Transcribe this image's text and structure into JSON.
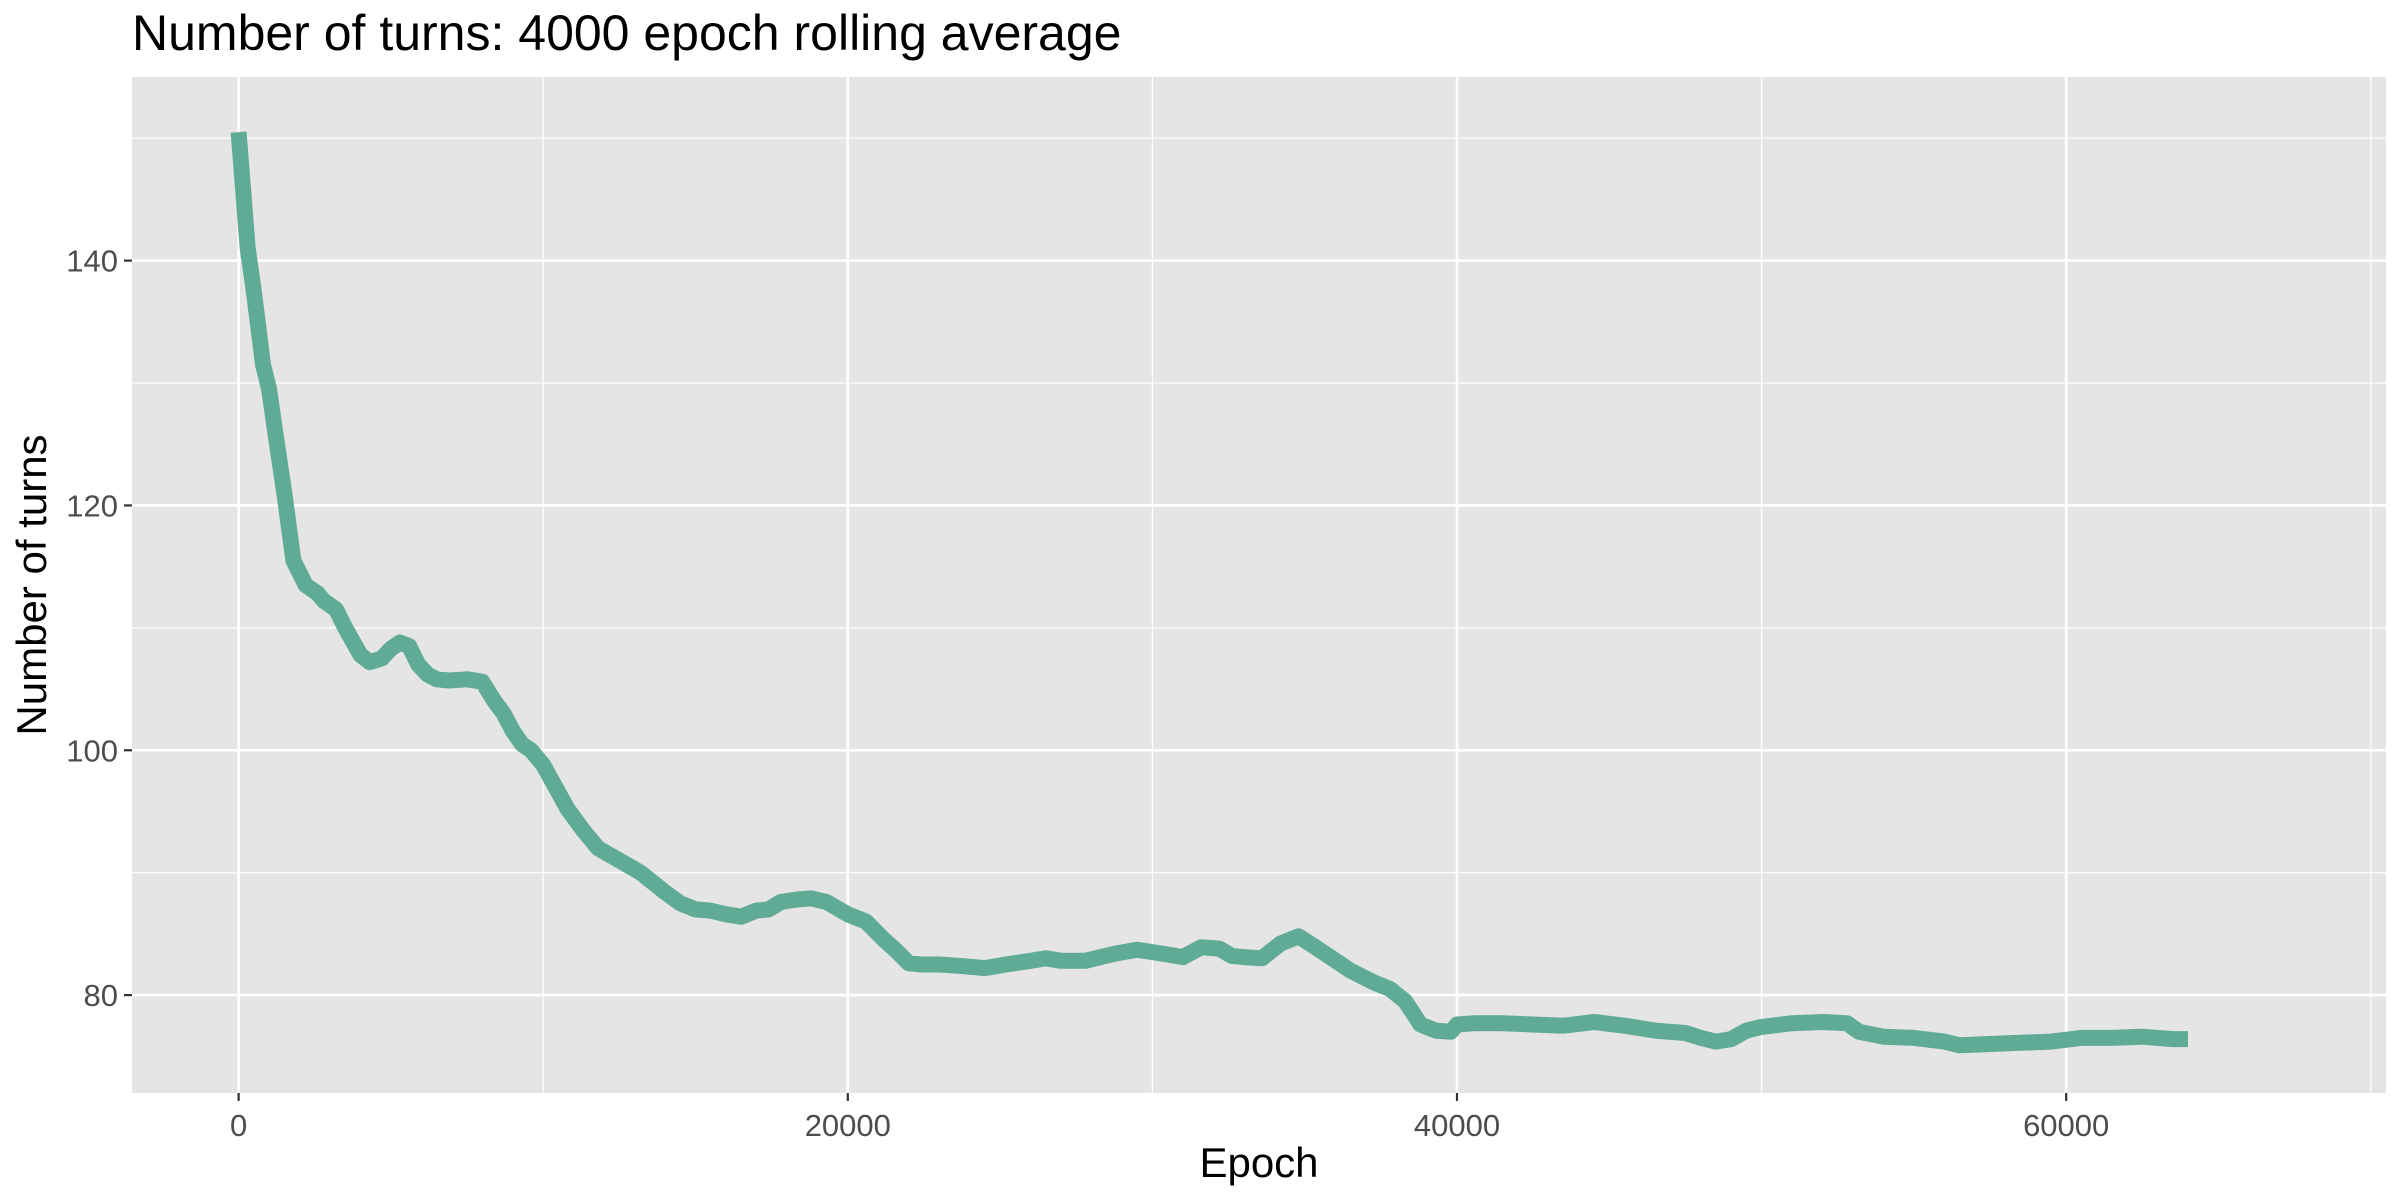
{
  "chart_data": {
    "type": "line",
    "title": "Number of turns: 4000 epoch rolling average",
    "xlabel": "Epoch",
    "ylabel": "Number of turns",
    "xlim": [
      -3500,
      70500
    ],
    "ylim": [
      72,
      155
    ],
    "x_ticks": [
      0,
      20000,
      40000,
      60000
    ],
    "x_tick_labels": [
      "0",
      "20000",
      "40000",
      "60000"
    ],
    "x_minor_ticks": [
      10000,
      30000,
      50000,
      70000
    ],
    "y_ticks": [
      80,
      100,
      120,
      140
    ],
    "y_tick_labels": [
      "80",
      "100",
      "120",
      "140"
    ],
    "y_minor_ticks": [
      90,
      110,
      130,
      150
    ],
    "grid": true,
    "background_color": "#e5e5e5",
    "grid_color": "#ffffff",
    "line_color": "#5fab95",
    "series": [
      {
        "x": [
          0,
          300,
          500,
          800,
          1000,
          1200,
          1500,
          1800,
          2200,
          2600,
          2800,
          3200,
          3500,
          4000,
          4300,
          4700,
          5000,
          5300,
          5600,
          5900,
          6200,
          6500,
          6900,
          7500,
          8000,
          8400,
          8700,
          9000,
          9300,
          9600,
          10000,
          10400,
          10800,
          11300,
          11800,
          12500,
          13200,
          14000,
          14500,
          15000,
          15500,
          16000,
          16500,
          17000,
          17400,
          17800,
          18300,
          18800,
          19300,
          20000,
          20600,
          21200,
          21600,
          22000,
          22400,
          23000,
          23600,
          24500,
          25200,
          26000,
          26500,
          27000,
          27800,
          28300,
          28800,
          29500,
          30300,
          31000,
          31600,
          32200,
          32600,
          33000,
          33600,
          34200,
          34800,
          35300,
          35900,
          36500,
          37300,
          37800,
          38300,
          38800,
          39300,
          39800,
          40000,
          40600,
          41500,
          42500,
          43500,
          44500,
          45500,
          46500,
          47500,
          48000,
          48500,
          49000,
          49500,
          50000,
          51000,
          52000,
          52800,
          53200,
          54000,
          55000,
          56000,
          56500,
          57500,
          58500,
          59500,
          60500,
          61500,
          62500,
          63500,
          64000
        ],
        "values": [
          150.5,
          141,
          137.5,
          131.5,
          129.5,
          126,
          121,
          115.5,
          113.5,
          112.8,
          112.2,
          111.5,
          110,
          107.8,
          107.2,
          107.5,
          108.3,
          108.8,
          108.5,
          107.0,
          106.2,
          105.8,
          105.7,
          105.8,
          105.6,
          104.0,
          103.0,
          101.6,
          100.5,
          100.0,
          98.8,
          97.0,
          95.2,
          93.5,
          92.0,
          91.0,
          90.0,
          88.4,
          87.5,
          87.0,
          86.9,
          86.6,
          86.4,
          86.9,
          87.0,
          87.6,
          87.8,
          87.9,
          87.6,
          86.6,
          86.0,
          84.5,
          83.6,
          82.6,
          82.5,
          82.5,
          82.4,
          82.2,
          82.5,
          82.8,
          83.0,
          82.8,
          82.8,
          83.1,
          83.4,
          83.7,
          83.4,
          83.1,
          83.9,
          83.8,
          83.2,
          83.1,
          83.0,
          84.2,
          84.8,
          84.0,
          83.0,
          82.0,
          81.0,
          80.5,
          79.5,
          77.6,
          77.1,
          77.0,
          77.6,
          77.7,
          77.7,
          77.6,
          77.5,
          77.8,
          77.5,
          77.1,
          76.9,
          76.5,
          76.2,
          76.4,
          77.1,
          77.4,
          77.7,
          77.8,
          77.7,
          77.0,
          76.6,
          76.5,
          76.2,
          75.9,
          76.0,
          76.1,
          76.2,
          76.5,
          76.5,
          76.6,
          76.4,
          76.4
        ]
      }
    ]
  }
}
